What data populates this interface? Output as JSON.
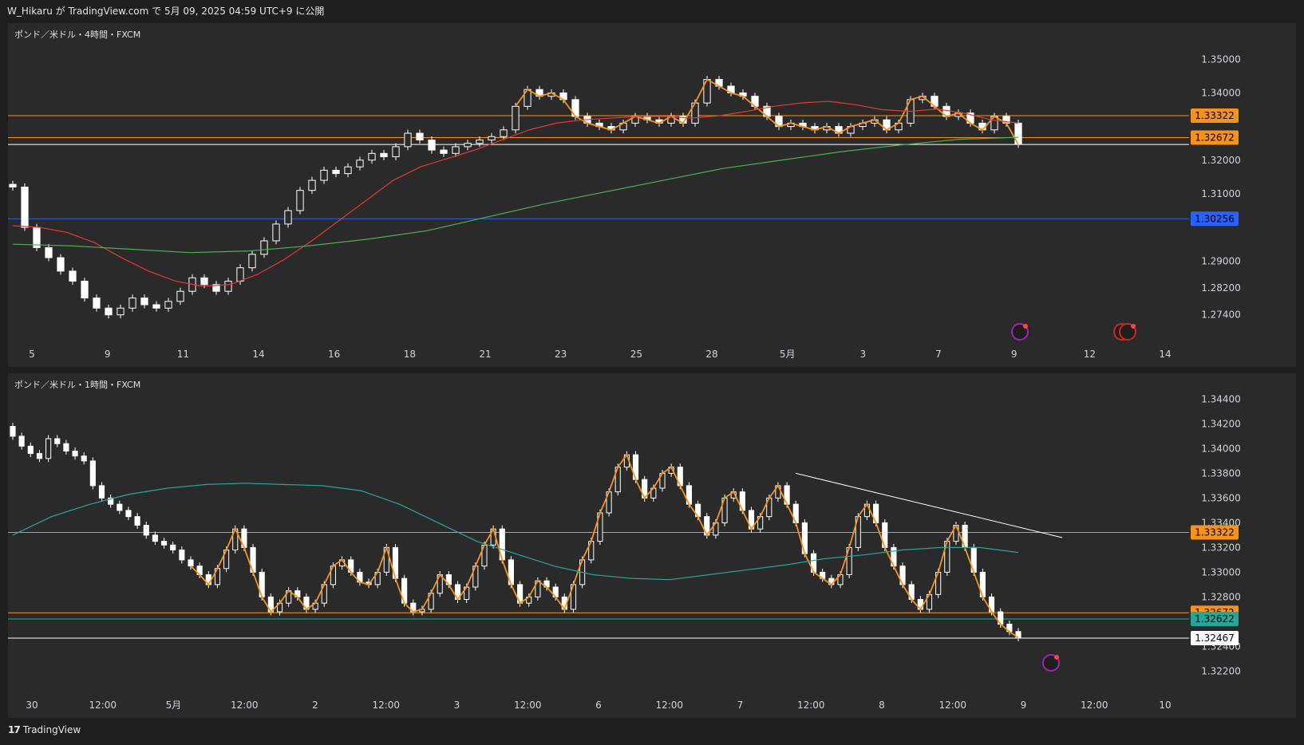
{
  "header": {
    "publish_text": "W_Hikaru が TradingView.com で 5月 09, 2025 04:59 UTC+9 に公開"
  },
  "footer": {
    "brand": "TradingView",
    "logo_glyph": "17"
  },
  "colors": {
    "pane_bg": "#2a2a2a",
    "up_candle": "#ffffff",
    "down_candle": "#ffffff",
    "wick": "#ffffff",
    "orange": "#f7931a",
    "red_ma": "#e53935",
    "green_ma": "#4caf50",
    "teal_ma": "#26a69a",
    "blue_line": "#2962ff",
    "white_line": "#ffffff"
  },
  "chart_data": [
    {
      "type": "line",
      "title": "ポンド／米ドル・4時間・FXCM",
      "ylim": [
        1.268,
        1.356
      ],
      "y_ticks": [
        "1.35000",
        "1.34000",
        "1.32000",
        "1.31000",
        "1.29000",
        "1.28200",
        "1.27400"
      ],
      "x_ticks": [
        "5",
        "9",
        "11",
        "14",
        "16",
        "18",
        "21",
        "23",
        "25",
        "28",
        "5月",
        "3",
        "7",
        "9",
        "12",
        "14"
      ],
      "horizontal_levels": [
        {
          "value": 1.33322,
          "label": "1.33322",
          "color": "#f7931a"
        },
        {
          "value": 1.32672,
          "label": "1.32672",
          "color": "#f7931a"
        },
        {
          "value": 1.32467,
          "label": "",
          "color": "#ffffff"
        },
        {
          "value": 1.30256,
          "label": "1.30256",
          "color": "#2962ff"
        }
      ],
      "series": [
        {
          "values": [
            1.312,
            1.3,
            1.294,
            1.291,
            1.287,
            1.284,
            1.279,
            1.276,
            1.274,
            1.276,
            1.279,
            1.277,
            1.276,
            1.278,
            1.281,
            1.285,
            1.283,
            1.281,
            1.284,
            1.288,
            1.292,
            1.296,
            1.301,
            1.305,
            1.311,
            1.314,
            1.317,
            1.316,
            1.318,
            1.32,
            1.322,
            1.321,
            1.324,
            1.328,
            1.326,
            1.323,
            1.322,
            1.324,
            1.325,
            1.326,
            1.327,
            1.329,
            1.336,
            1.341,
            1.339,
            1.34,
            1.338,
            1.333,
            1.331,
            1.33,
            1.329,
            1.331,
            1.333,
            1.332,
            1.331,
            1.333,
            1.331,
            1.337,
            1.344,
            1.342,
            1.34,
            1.339,
            1.336,
            1.333,
            1.33,
            1.331,
            1.33,
            1.329,
            1.33,
            1.328,
            1.33,
            1.331,
            1.332,
            1.329,
            1.331,
            1.338,
            1.339,
            1.336,
            1.333,
            1.334,
            1.331,
            1.329,
            1.333,
            1.331,
            1.3247
          ]
        },
        {
          "values": [
            1.3005,
            1.3,
            1.2985,
            1.2955,
            1.291,
            1.287,
            1.284,
            1.2825,
            1.283,
            1.286,
            1.2905,
            1.296,
            1.302,
            1.308,
            1.314,
            1.318,
            1.3205,
            1.323,
            1.326,
            1.329,
            1.331,
            1.332,
            1.3325,
            1.333,
            1.333,
            1.3325,
            1.3332,
            1.3345,
            1.336,
            1.337,
            1.3375,
            1.3365,
            1.335,
            1.3345,
            1.3352,
            1.334,
            1.332,
            1.331
          ]
        },
        {
          "values": [
            1.295,
            1.2945,
            1.2935,
            1.2925,
            1.293,
            1.2945,
            1.2965,
            1.299,
            1.303,
            1.307,
            1.3105,
            1.314,
            1.3175,
            1.32,
            1.3225,
            1.3245,
            1.3262,
            1.3268
          ]
        }
      ]
    },
    {
      "type": "line",
      "title": "ポンド／米ドル・1時間・FXCM",
      "ylim": [
        1.3208,
        1.3448
      ],
      "y_ticks": [
        "1.34400",
        "1.34200",
        "1.34000",
        "1.33800",
        "1.33600",
        "1.33400",
        "1.33200",
        "1.33000",
        "1.32800",
        "1.32400",
        "1.32200"
      ],
      "x_ticks": [
        "30",
        "12:00",
        "5月",
        "12:00",
        "2",
        "12:00",
        "3",
        "12:00",
        "6",
        "12:00",
        "7",
        "12:00",
        "8",
        "12:00",
        "9",
        "12:00",
        "10"
      ],
      "horizontal_levels": [
        {
          "value": 1.33322,
          "label": "1.33322",
          "color": "#f7931a"
        },
        {
          "value": 1.32672,
          "label": "1.32672",
          "color": "#f7931a"
        },
        {
          "value": 1.32622,
          "label": "1.32622",
          "color": "#26a69a"
        },
        {
          "value": 1.32467,
          "label": "1.32467",
          "color": "#ffffff"
        }
      ],
      "trendline": {
        "from": 1.338,
        "to": 1.3328
      },
      "series": [
        {
          "values": [
            1.341,
            1.3402,
            1.3396,
            1.3392,
            1.3408,
            1.3404,
            1.3398,
            1.3394,
            1.339,
            1.337,
            1.336,
            1.3355,
            1.335,
            1.3345,
            1.3338,
            1.333,
            1.3325,
            1.3322,
            1.3318,
            1.331,
            1.3305,
            1.3298,
            1.329,
            1.3303,
            1.3318,
            1.3335,
            1.332,
            1.33,
            1.328,
            1.3268,
            1.3275,
            1.3285,
            1.328,
            1.327,
            1.3275,
            1.329,
            1.3305,
            1.331,
            1.33,
            1.3292,
            1.329,
            1.33,
            1.332,
            1.3295,
            1.3275,
            1.3268,
            1.327,
            1.3283,
            1.3298,
            1.329,
            1.3278,
            1.3288,
            1.3305,
            1.3322,
            1.3335,
            1.331,
            1.329,
            1.3275,
            1.328,
            1.3293,
            1.3288,
            1.328,
            1.327,
            1.329,
            1.331,
            1.3325,
            1.3348,
            1.3365,
            1.3385,
            1.3395,
            1.3375,
            1.336,
            1.3368,
            1.338,
            1.3385,
            1.337,
            1.3355,
            1.3345,
            1.333,
            1.334,
            1.336,
            1.3365,
            1.335,
            1.3335,
            1.3345,
            1.336,
            1.337,
            1.3355,
            1.334,
            1.3315,
            1.33,
            1.3295,
            1.329,
            1.3298,
            1.332,
            1.3345,
            1.3355,
            1.334,
            1.332,
            1.3305,
            1.329,
            1.3278,
            1.327,
            1.3282,
            1.33,
            1.3325,
            1.3338,
            1.332,
            1.33,
            1.328,
            1.3268,
            1.3258,
            1.3252,
            1.3247
          ]
        },
        {
          "values": [
            1.333,
            1.3345,
            1.3355,
            1.3363,
            1.3368,
            1.3371,
            1.3372,
            1.3371,
            1.337,
            1.3366,
            1.3355,
            1.334,
            1.3325,
            1.3315,
            1.3305,
            1.3298,
            1.3295,
            1.3294,
            1.3298,
            1.3302,
            1.3306,
            1.3311,
            1.3314,
            1.3318,
            1.332,
            1.332,
            1.3316
          ]
        }
      ]
    }
  ],
  "event_markers": [
    {
      "pane": 0,
      "icon": "lightning-icon",
      "color": "#9c27b0"
    },
    {
      "pane": 0,
      "icon": "uk-flag-icon",
      "color": "#c62828"
    },
    {
      "pane": 1,
      "icon": "lightning-icon",
      "color": "#9c27b0"
    }
  ]
}
